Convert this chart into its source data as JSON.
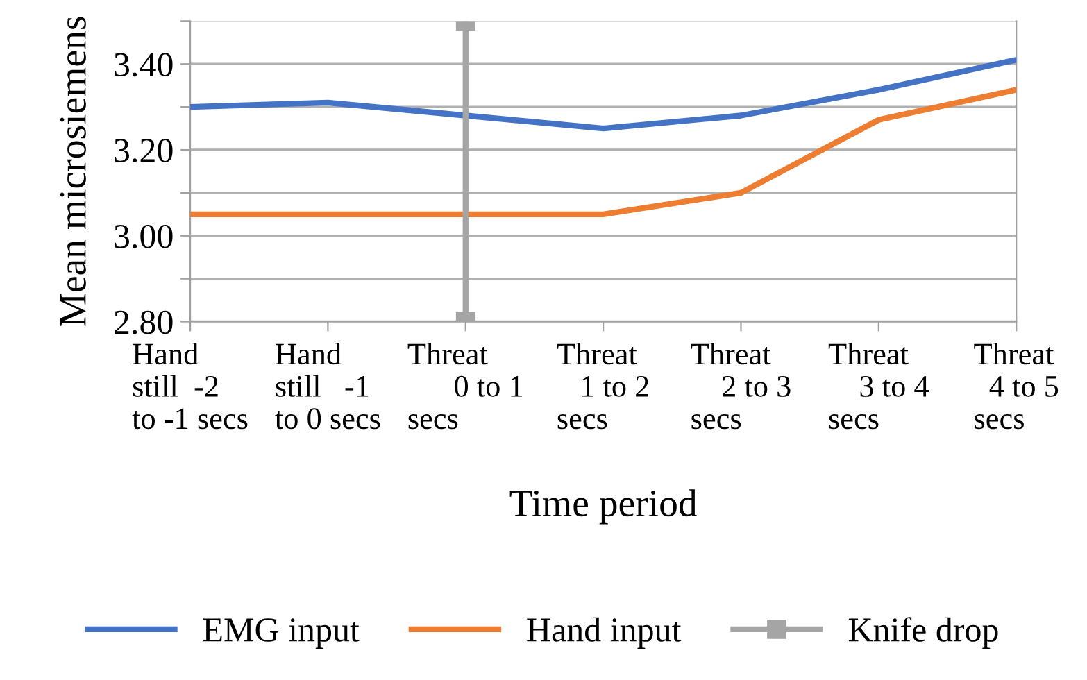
{
  "chart_data": {
    "type": "line",
    "xlabel": "Time period",
    "ylabel": "Mean microsiemens",
    "categories": [
      "Hand\nstill  -2\nto -1 secs",
      "Hand\nstill   -1\nto 0 secs",
      "Threat\n      0 to 1\nsecs",
      "Threat\n   1 to 2\nsecs",
      "Threat\n    2 to 3\nsecs",
      "Threat\n    3 to 4\nsecs",
      "Threat\n  4 to 5\nsecs"
    ],
    "series": [
      {
        "name": "EMG input",
        "color": "#4472c4",
        "values": [
          3.3,
          3.31,
          3.28,
          3.25,
          3.28,
          3.34,
          3.41
        ]
      },
      {
        "name": "Hand input",
        "color": "#ed7d31",
        "values": [
          3.05,
          3.05,
          3.05,
          3.05,
          3.1,
          3.27,
          3.34
        ]
      },
      {
        "name": "Knife drop",
        "color": "#a5a5a5",
        "marker": "square",
        "x": [
          "Threat\n      0 to 1\nsecs",
          "Threat\n      0 to 1\nsecs"
        ],
        "values": [
          2.8,
          3.5
        ]
      }
    ],
    "ylim": [
      2.8,
      3.5
    ],
    "yticks": [
      {
        "value": 2.8,
        "label": "2.80"
      },
      {
        "value": 2.9,
        "label": null
      },
      {
        "value": 3.0,
        "label": "3.00"
      },
      {
        "value": 3.1,
        "label": null
      },
      {
        "value": 3.2,
        "label": "3.20"
      },
      {
        "value": 3.3,
        "label": null
      },
      {
        "value": 3.4,
        "label": "3.40"
      },
      {
        "value": 3.5,
        "label": null
      }
    ],
    "grid": "y",
    "legend": "bottom",
    "marker": "none",
    "line_style": "solid"
  }
}
